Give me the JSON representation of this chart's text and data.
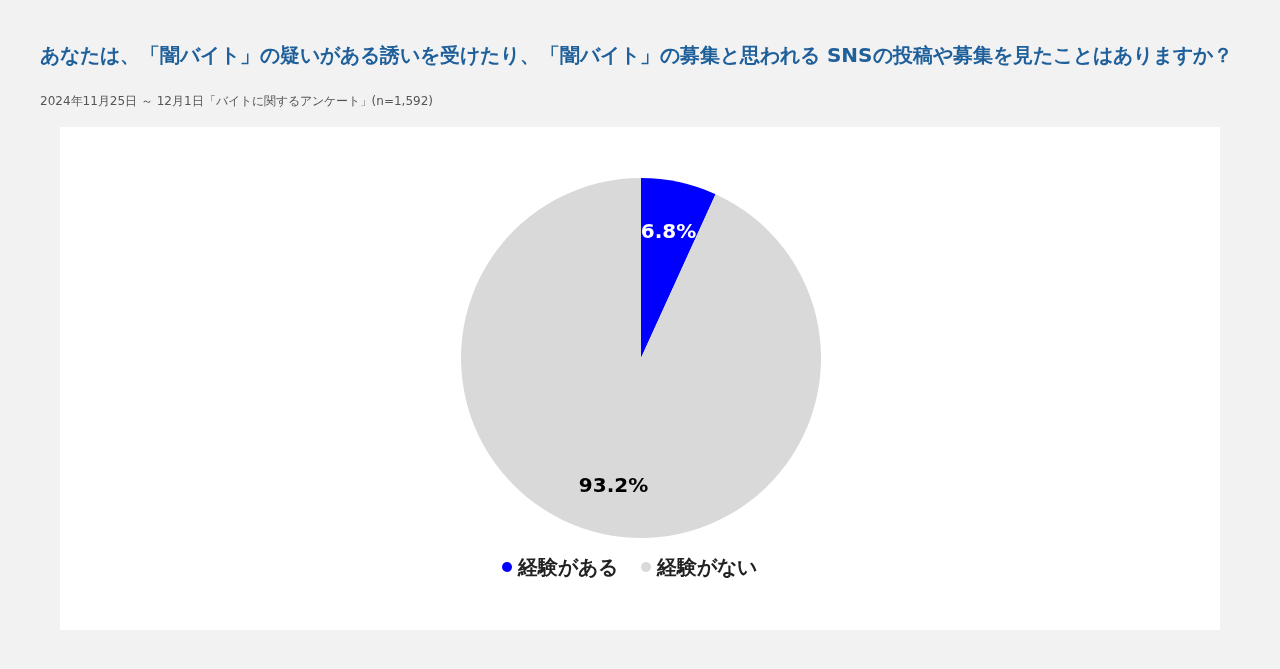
{
  "chart_data": {
    "type": "pie",
    "title": "あなたは、「闇バイト」の疑いがある誘いを受けたり、「闇バイト」の募集と思われる SNSの投稿や募集を見たことはありますか？",
    "subtitle": "2024年11月25日 ～ 12月1日「バイトに関するアンケート」(n=1,592)",
    "categories": [
      "経験がある",
      "経験がない"
    ],
    "values": [
      6.8,
      93.2
    ],
    "colors": [
      "#0000ff",
      "#d9d9d9"
    ],
    "value_labels": [
      "6.8%",
      "93.2%"
    ],
    "legend": "bottom"
  }
}
